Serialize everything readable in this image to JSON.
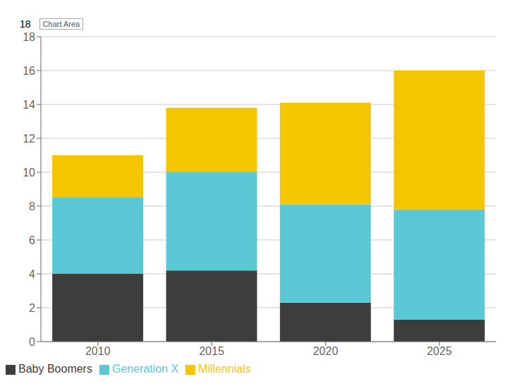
{
  "chart_data": {
    "type": "bar",
    "stacked": true,
    "categories": [
      "2010",
      "2015",
      "2020",
      "2025"
    ],
    "series": [
      {
        "name": "Baby Boomers",
        "color": "#3d3d3d",
        "values": [
          4.0,
          4.2,
          2.3,
          1.3
        ]
      },
      {
        "name": "Generation X",
        "color": "#5bc8d5",
        "values": [
          4.5,
          5.8,
          5.8,
          6.5
        ]
      },
      {
        "name": "Millennials",
        "color": "#f5c500",
        "values": [
          2.5,
          3.8,
          6.0,
          8.2
        ]
      }
    ],
    "ylim": [
      0,
      18
    ],
    "yticks": [
      0,
      2,
      4,
      6,
      8,
      10,
      12,
      14,
      16,
      18
    ],
    "grid": true,
    "legend": "bottom",
    "annotations": [
      "18",
      "Chart Area"
    ]
  }
}
